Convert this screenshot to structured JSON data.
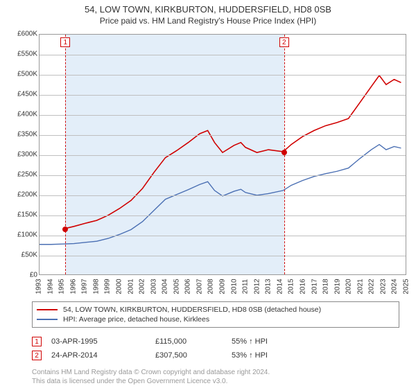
{
  "title_main": "54, LOW TOWN, KIRKBURTON, HUDDERSFIELD, HD8 0SB",
  "title_sub": "Price paid vs. HM Land Registry's House Price Index (HPI)",
  "chart": {
    "type": "line",
    "background_color": "#ffffff",
    "grid_color": "#bfbfbf",
    "axis_color": "#999999",
    "shade_color": "#dbe9f7",
    "shade_opacity": 0.78,
    "x_years": [
      1993,
      1994,
      1995,
      1996,
      1997,
      1998,
      1999,
      2000,
      2001,
      2002,
      2003,
      2004,
      2005,
      2006,
      2007,
      2008,
      2009,
      2010,
      2011,
      2012,
      2013,
      2014,
      2015,
      2016,
      2017,
      2018,
      2019,
      2020,
      2021,
      2022,
      2023,
      2024,
      2025
    ],
    "x_min": 1993,
    "x_max": 2025,
    "y_ticks_k": [
      0,
      50,
      100,
      150,
      200,
      250,
      300,
      350,
      400,
      450,
      500,
      550,
      600
    ],
    "y_min": 0,
    "y_max": 600,
    "series": [
      {
        "id": "property",
        "label": "54, LOW TOWN, KIRKBURTON, HUDDERSFIELD, HD8 0SB (detached house)",
        "color": "#d00000",
        "line_width": 1.6,
        "points": [
          [
            1995.25,
            115
          ],
          [
            1996,
            120
          ],
          [
            1997,
            128
          ],
          [
            1998,
            135
          ],
          [
            1999,
            148
          ],
          [
            2000,
            165
          ],
          [
            2001,
            185
          ],
          [
            2002,
            215
          ],
          [
            2003,
            255
          ],
          [
            2004,
            292
          ],
          [
            2005,
            310
          ],
          [
            2006,
            330
          ],
          [
            2007,
            352
          ],
          [
            2007.7,
            360
          ],
          [
            2008.3,
            330
          ],
          [
            2009,
            305
          ],
          [
            2010,
            323
          ],
          [
            2010.6,
            330
          ],
          [
            2011,
            318
          ],
          [
            2012,
            305
          ],
          [
            2013,
            312
          ],
          [
            2014.3,
            307
          ],
          [
            2015,
            325
          ],
          [
            2016,
            345
          ],
          [
            2017,
            360
          ],
          [
            2018,
            372
          ],
          [
            2019,
            380
          ],
          [
            2020,
            390
          ],
          [
            2021,
            430
          ],
          [
            2022,
            470
          ],
          [
            2022.7,
            498
          ],
          [
            2023.3,
            475
          ],
          [
            2024,
            488
          ],
          [
            2024.6,
            480
          ]
        ]
      },
      {
        "id": "hpi",
        "label": "HPI: Average price, detached house, Kirklees",
        "color": "#4a6fb3",
        "line_width": 1.4,
        "points": [
          [
            1993,
            75
          ],
          [
            1994,
            75
          ],
          [
            1995,
            76
          ],
          [
            1996,
            77
          ],
          [
            1997,
            80
          ],
          [
            1998,
            83
          ],
          [
            1999,
            90
          ],
          [
            2000,
            100
          ],
          [
            2001,
            112
          ],
          [
            2002,
            132
          ],
          [
            2003,
            160
          ],
          [
            2004,
            188
          ],
          [
            2005,
            200
          ],
          [
            2006,
            212
          ],
          [
            2007,
            225
          ],
          [
            2007.7,
            232
          ],
          [
            2008.3,
            210
          ],
          [
            2009,
            196
          ],
          [
            2010,
            208
          ],
          [
            2010.6,
            213
          ],
          [
            2011,
            205
          ],
          [
            2012,
            198
          ],
          [
            2013,
            202
          ],
          [
            2014.3,
            210
          ],
          [
            2015,
            223
          ],
          [
            2016,
            235
          ],
          [
            2017,
            245
          ],
          [
            2018,
            252
          ],
          [
            2019,
            258
          ],
          [
            2020,
            266
          ],
          [
            2021,
            290
          ],
          [
            2022,
            312
          ],
          [
            2022.7,
            325
          ],
          [
            2023.3,
            312
          ],
          [
            2024,
            320
          ],
          [
            2024.6,
            316
          ]
        ]
      }
    ],
    "sales": [
      {
        "n": "1",
        "year": 1995.25,
        "y": 115,
        "date": "03-APR-1995",
        "price": "£115,000",
        "delta": "55% ↑ HPI"
      },
      {
        "n": "2",
        "year": 2014.3,
        "y": 307,
        "date": "24-APR-2014",
        "price": "£307,500",
        "delta": "53% ↑ HPI"
      }
    ],
    "currency_prefix": "£",
    "y_tick_suffix": "K"
  },
  "legend": {
    "border_color": "#888888"
  },
  "footer_line1": "Contains HM Land Registry data © Crown copyright and database right 2024.",
  "footer_line2": "This data is licensed under the Open Government Licence v3.0."
}
